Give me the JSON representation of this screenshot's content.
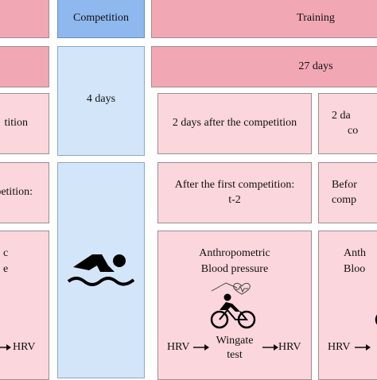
{
  "header": {
    "competition": "Competition",
    "training": "Training"
  },
  "durations": {
    "competition_days": "4 days",
    "training_days": "27 days"
  },
  "timing_row": {
    "left_partial": "tition",
    "middle": "2 days after the competition",
    "right_partial_line1": "2 da",
    "right_partial_line2": "co"
  },
  "relative_row": {
    "left_partial": "petition:",
    "middle_line1": "After the first competition:",
    "middle_line2": "t-2",
    "right_partial_line1": "Befor",
    "right_partial_line2": "comp"
  },
  "tests_row": {
    "left_partial_line1": "c",
    "left_partial_line2": "e",
    "left_hrv": "HRV",
    "middle_line1": "Anthropometric",
    "middle_line2": "Blood pressure",
    "middle_hrv_left": "HRV",
    "middle_test_line1": "Wingate",
    "middle_test_line2": "test",
    "middle_hrv_right": "HRV",
    "right_partial_line1": "Anth",
    "right_partial_line2": "Bloo",
    "right_hrv": "HRV"
  },
  "icons": {
    "swimmer": "swimmer-icon",
    "cyclist": "cyclist-heart-icon",
    "arrow": "arrow-right-icon"
  },
  "colors": {
    "header_pink": "#f2a7b4",
    "panel_pink": "#fbd6dc",
    "competition_blue": "#8fb8ee",
    "competition_lightblue": "#d3e5f8"
  }
}
